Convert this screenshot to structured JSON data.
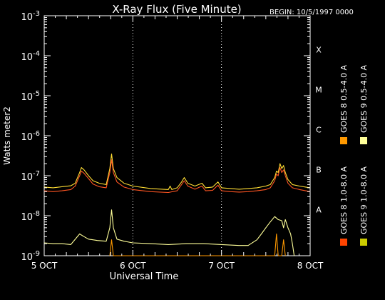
{
  "chart_data": {
    "type": "line",
    "title": "X-Ray Flux (Five Minute)",
    "subtitle": "BEGIN: 10/5/1997 0000",
    "xlabel": "Universal Time",
    "ylabel": "Watts meter2",
    "y_scale": "log",
    "ylim": [
      1e-09,
      0.001
    ],
    "xlim_days": [
      0,
      3
    ],
    "x_ticks": [
      {
        "day": 0,
        "label": "5 OCT"
      },
      {
        "day": 1,
        "label": "6 OCT"
      },
      {
        "day": 2,
        "label": "7 OCT"
      },
      {
        "day": 3,
        "label": "8 OCT"
      }
    ],
    "y_ticks": [
      {
        "exp": -9,
        "label": "10",
        "sup": "-9"
      },
      {
        "exp": -8,
        "label": "10",
        "sup": "-8"
      },
      {
        "exp": -7,
        "label": "10",
        "sup": "-7"
      },
      {
        "exp": -6,
        "label": "10",
        "sup": "-6"
      },
      {
        "exp": -5,
        "label": "10",
        "sup": "-5"
      },
      {
        "exp": -4,
        "label": "10",
        "sup": "-4"
      },
      {
        "exp": -3,
        "label": "10",
        "sup": "-3"
      }
    ],
    "flare_classes": [
      {
        "label": "A",
        "exp": -7.85
      },
      {
        "label": "B",
        "exp": -6.85
      },
      {
        "label": "C",
        "exp": -5.85
      },
      {
        "label": "M",
        "exp": -4.85
      },
      {
        "label": "X",
        "exp": -3.85
      }
    ],
    "grid": {
      "vertical_dotted_at_days": [
        1,
        2
      ]
    },
    "legend_placement": "right-vertical",
    "legend": [
      {
        "label": "GOES 8 1.0-8.0 A",
        "color": "#ff4400"
      },
      {
        "label": "GOES 8 0.5-4.0 A",
        "color": "#ff9900"
      },
      {
        "label": "GOES 9 1.0-8.0 A",
        "color": "#cccc00"
      },
      {
        "label": "GOES 9 0.5-4.0 A",
        "color": "#ffff99"
      }
    ],
    "series": [
      {
        "name": "GOES 9 1.0-8.0 A",
        "color": "#ffdd33",
        "points": [
          [
            0.0,
            5.2e-08
          ],
          [
            0.1,
            5e-08
          ],
          [
            0.2,
            5.3e-08
          ],
          [
            0.3,
            5.6e-08
          ],
          [
            0.35,
            6.5e-08
          ],
          [
            0.4,
            1.2e-07
          ],
          [
            0.42,
            1.6e-07
          ],
          [
            0.45,
            1.4e-07
          ],
          [
            0.5,
            1e-07
          ],
          [
            0.55,
            7.5e-08
          ],
          [
            0.62,
            6.5e-08
          ],
          [
            0.7,
            6e-08
          ],
          [
            0.74,
            1.5e-07
          ],
          [
            0.76,
            3.5e-07
          ],
          [
            0.78,
            1.5e-07
          ],
          [
            0.82,
            9e-08
          ],
          [
            0.9,
            6.5e-08
          ],
          [
            1.0,
            5.5e-08
          ],
          [
            1.2,
            4.8e-08
          ],
          [
            1.4,
            4.5e-08
          ],
          [
            1.42,
            5.5e-08
          ],
          [
            1.44,
            4.5e-08
          ],
          [
            1.5,
            5e-08
          ],
          [
            1.55,
            7e-08
          ],
          [
            1.58,
            9e-08
          ],
          [
            1.62,
            6.5e-08
          ],
          [
            1.7,
            5.5e-08
          ],
          [
            1.78,
            6.5e-08
          ],
          [
            1.82,
            5e-08
          ],
          [
            1.9,
            5.2e-08
          ],
          [
            1.96,
            7e-08
          ],
          [
            2.0,
            5e-08
          ],
          [
            2.1,
            4.8e-08
          ],
          [
            2.2,
            4.6e-08
          ],
          [
            2.3,
            4.8e-08
          ],
          [
            2.4,
            5e-08
          ],
          [
            2.5,
            5.5e-08
          ],
          [
            2.55,
            6e-08
          ],
          [
            2.6,
            9e-08
          ],
          [
            2.62,
            1.3e-07
          ],
          [
            2.64,
            1.2e-07
          ],
          [
            2.66,
            2e-07
          ],
          [
            2.68,
            1.5e-07
          ],
          [
            2.7,
            1.8e-07
          ],
          [
            2.72,
            1.2e-07
          ],
          [
            2.75,
            8e-08
          ],
          [
            2.8,
            6e-08
          ],
          [
            2.88,
            5.5e-08
          ],
          [
            2.95,
            5.2e-08
          ],
          [
            3.0,
            5e-08
          ]
        ]
      },
      {
        "name": "GOES 8 1.0-8.0 A",
        "color": "#ff5522",
        "points": [
          [
            0.0,
            4.2e-08
          ],
          [
            0.1,
            4e-08
          ],
          [
            0.2,
            4.2e-08
          ],
          [
            0.3,
            4.5e-08
          ],
          [
            0.35,
            5.5e-08
          ],
          [
            0.4,
            1e-07
          ],
          [
            0.42,
            1.3e-07
          ],
          [
            0.45,
            1.15e-07
          ],
          [
            0.5,
            8.5e-08
          ],
          [
            0.55,
            6.2e-08
          ],
          [
            0.62,
            5.3e-08
          ],
          [
            0.7,
            5e-08
          ],
          [
            0.74,
            1.2e-07
          ],
          [
            0.76,
            2.5e-07
          ],
          [
            0.78,
            1.2e-07
          ],
          [
            0.82,
            7e-08
          ],
          [
            0.9,
            5.2e-08
          ],
          [
            1.0,
            4.5e-08
          ],
          [
            1.2,
            4e-08
          ],
          [
            1.4,
            3.8e-08
          ],
          [
            1.5,
            4.2e-08
          ],
          [
            1.55,
            6e-08
          ],
          [
            1.58,
            7.5e-08
          ],
          [
            1.62,
            5.5e-08
          ],
          [
            1.7,
            4.6e-08
          ],
          [
            1.78,
            5.5e-08
          ],
          [
            1.82,
            4.2e-08
          ],
          [
            1.9,
            4.3e-08
          ],
          [
            1.96,
            5.8e-08
          ],
          [
            2.0,
            4.2e-08
          ],
          [
            2.1,
            4e-08
          ],
          [
            2.2,
            3.9e-08
          ],
          [
            2.3,
            4e-08
          ],
          [
            2.4,
            4.2e-08
          ],
          [
            2.5,
            4.5e-08
          ],
          [
            2.55,
            5e-08
          ],
          [
            2.6,
            7.5e-08
          ],
          [
            2.62,
            1.1e-07
          ],
          [
            2.64,
            1e-07
          ],
          [
            2.66,
            1.6e-07
          ],
          [
            2.68,
            1.2e-07
          ],
          [
            2.7,
            1.4e-07
          ],
          [
            2.72,
            1e-07
          ],
          [
            2.75,
            6.5e-08
          ],
          [
            2.8,
            5e-08
          ],
          [
            2.88,
            4.5e-08
          ],
          [
            2.95,
            4.2e-08
          ],
          [
            3.0,
            4e-08
          ]
        ]
      },
      {
        "name": "GOES 9 0.5-4.0 A",
        "color": "#ffff99",
        "points": [
          [
            0.0,
            2.1e-09
          ],
          [
            0.1,
            2e-09
          ],
          [
            0.2,
            2e-09
          ],
          [
            0.3,
            1.9e-09
          ],
          [
            0.4,
            3.5e-09
          ],
          [
            0.45,
            3e-09
          ],
          [
            0.5,
            2.6e-09
          ],
          [
            0.6,
            2.4e-09
          ],
          [
            0.7,
            2.3e-09
          ],
          [
            0.74,
            5e-09
          ],
          [
            0.76,
            1.4e-08
          ],
          [
            0.78,
            5e-09
          ],
          [
            0.82,
            2.6e-09
          ],
          [
            0.9,
            2.3e-09
          ],
          [
            1.0,
            2.1e-09
          ],
          [
            1.2,
            2e-09
          ],
          [
            1.4,
            1.9e-09
          ],
          [
            1.6,
            2e-09
          ],
          [
            1.8,
            2e-09
          ],
          [
            2.0,
            1.9e-09
          ],
          [
            2.2,
            1.8e-09
          ],
          [
            2.3,
            1.8e-09
          ],
          [
            2.4,
            2.5e-09
          ],
          [
            2.45,
            3.5e-09
          ],
          [
            2.5,
            5e-09
          ],
          [
            2.55,
            7e-09
          ],
          [
            2.6,
            9.5e-09
          ],
          [
            2.64,
            8e-09
          ],
          [
            2.68,
            7.5e-09
          ],
          [
            2.7,
            5e-09
          ],
          [
            2.72,
            8e-09
          ],
          [
            2.75,
            5e-09
          ],
          [
            2.78,
            3.5e-09
          ],
          [
            2.8,
            2e-09
          ],
          [
            2.82,
            1e-09
          ]
        ]
      },
      {
        "name": "GOES 8 0.5-4.0 A",
        "color": "#ff9900",
        "points": [
          [
            0.74,
            1e-09
          ],
          [
            0.76,
            2.5e-09
          ],
          [
            0.78,
            1e-09
          ],
          [
            2.6,
            1e-09
          ],
          [
            2.62,
            3.5e-09
          ],
          [
            2.64,
            1e-09
          ],
          [
            2.68,
            1e-09
          ],
          [
            2.7,
            2.5e-09
          ],
          [
            2.72,
            1e-09
          ]
        ]
      }
    ]
  }
}
